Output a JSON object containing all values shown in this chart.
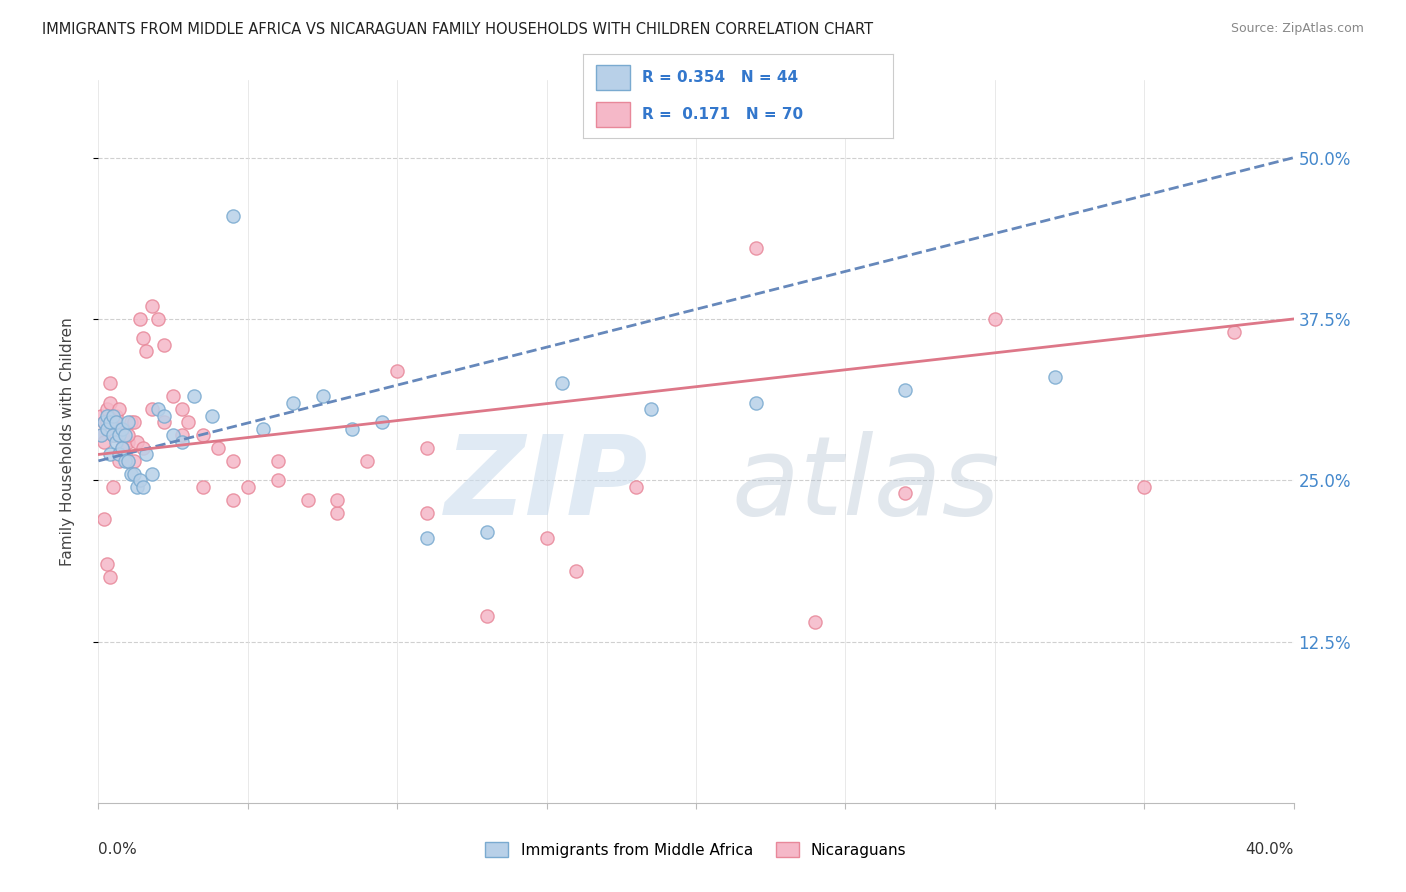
{
  "title": "IMMIGRANTS FROM MIDDLE AFRICA VS NICARAGUAN FAMILY HOUSEHOLDS WITH CHILDREN CORRELATION CHART",
  "source": "Source: ZipAtlas.com",
  "ylabel": "Family Households with Children",
  "ytick_labels": [
    "12.5%",
    "25.0%",
    "37.5%",
    "50.0%"
  ],
  "ytick_values": [
    0.125,
    0.25,
    0.375,
    0.5
  ],
  "xlim": [
    0.0,
    0.4
  ],
  "ylim": [
    0.0,
    0.56
  ],
  "legend_blue_r": "R = 0.354",
  "legend_blue_n": "N = 44",
  "legend_pink_r": "R =  0.171",
  "legend_pink_n": "N = 70",
  "legend_label_blue": "Immigrants from Middle Africa",
  "legend_label_pink": "Nicaraguans",
  "color_blue_fill": "#b8d0e8",
  "color_pink_fill": "#f5b8c8",
  "color_blue_edge": "#7aaad0",
  "color_pink_edge": "#e8889a",
  "color_blue_line": "#6688bb",
  "color_pink_line": "#dd7788",
  "color_legend_text": "#3377cc",
  "blue_scatter_x": [
    0.001,
    0.002,
    0.003,
    0.003,
    0.004,
    0.004,
    0.005,
    0.005,
    0.006,
    0.006,
    0.007,
    0.007,
    0.008,
    0.008,
    0.009,
    0.009,
    0.01,
    0.01,
    0.011,
    0.012,
    0.013,
    0.014,
    0.015,
    0.016,
    0.018,
    0.02,
    0.022,
    0.025,
    0.028,
    0.032,
    0.038,
    0.045,
    0.055,
    0.065,
    0.075,
    0.085,
    0.095,
    0.11,
    0.13,
    0.155,
    0.185,
    0.22,
    0.27,
    0.32
  ],
  "blue_scatter_y": [
    0.285,
    0.295,
    0.29,
    0.3,
    0.27,
    0.295,
    0.3,
    0.285,
    0.28,
    0.295,
    0.27,
    0.285,
    0.275,
    0.29,
    0.265,
    0.285,
    0.265,
    0.295,
    0.255,
    0.255,
    0.245,
    0.25,
    0.245,
    0.27,
    0.255,
    0.305,
    0.3,
    0.285,
    0.28,
    0.315,
    0.3,
    0.455,
    0.29,
    0.31,
    0.315,
    0.29,
    0.295,
    0.205,
    0.21,
    0.325,
    0.305,
    0.31,
    0.32,
    0.33
  ],
  "pink_scatter_x": [
    0.001,
    0.001,
    0.002,
    0.002,
    0.003,
    0.003,
    0.004,
    0.004,
    0.005,
    0.005,
    0.006,
    0.006,
    0.007,
    0.007,
    0.008,
    0.008,
    0.009,
    0.009,
    0.01,
    0.01,
    0.011,
    0.012,
    0.013,
    0.014,
    0.015,
    0.016,
    0.018,
    0.02,
    0.022,
    0.025,
    0.028,
    0.03,
    0.035,
    0.04,
    0.045,
    0.05,
    0.06,
    0.07,
    0.08,
    0.09,
    0.1,
    0.11,
    0.13,
    0.15,
    0.18,
    0.22,
    0.27,
    0.3,
    0.35,
    0.38,
    0.002,
    0.003,
    0.004,
    0.005,
    0.006,
    0.007,
    0.008,
    0.01,
    0.012,
    0.015,
    0.018,
    0.022,
    0.028,
    0.035,
    0.045,
    0.06,
    0.08,
    0.11,
    0.16,
    0.24
  ],
  "pink_scatter_y": [
    0.285,
    0.3,
    0.28,
    0.295,
    0.295,
    0.305,
    0.325,
    0.31,
    0.3,
    0.285,
    0.285,
    0.3,
    0.29,
    0.305,
    0.275,
    0.285,
    0.27,
    0.28,
    0.265,
    0.28,
    0.295,
    0.295,
    0.28,
    0.375,
    0.36,
    0.35,
    0.385,
    0.375,
    0.355,
    0.315,
    0.305,
    0.295,
    0.285,
    0.275,
    0.265,
    0.245,
    0.265,
    0.235,
    0.225,
    0.265,
    0.335,
    0.275,
    0.145,
    0.205,
    0.245,
    0.43,
    0.24,
    0.375,
    0.245,
    0.365,
    0.22,
    0.185,
    0.175,
    0.245,
    0.285,
    0.265,
    0.275,
    0.285,
    0.265,
    0.275,
    0.305,
    0.295,
    0.285,
    0.245,
    0.235,
    0.25,
    0.235,
    0.225,
    0.18,
    0.14
  ],
  "blue_trend_x": [
    0.0,
    0.4
  ],
  "blue_trend_y": [
    0.265,
    0.5
  ],
  "pink_trend_x": [
    0.0,
    0.4
  ],
  "pink_trend_y": [
    0.27,
    0.375
  ]
}
